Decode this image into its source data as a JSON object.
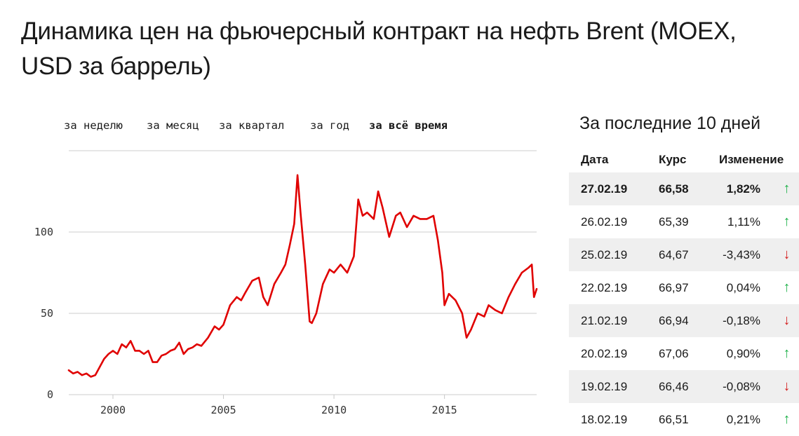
{
  "title": "Динамика цен на фьючерсный контракт на нефть Brent (MOEX, USD за баррель)",
  "periods": [
    {
      "label": "за неделю",
      "active": false
    },
    {
      "label": "за месяц",
      "active": false
    },
    {
      "label": "за квартал",
      "active": false
    },
    {
      "label": "за год",
      "active": false
    },
    {
      "label": "за всё время",
      "active": true
    }
  ],
  "chart_data": {
    "type": "line",
    "title": "",
    "xlabel": "",
    "ylabel": "",
    "xlim": [
      1998.0,
      2019.17
    ],
    "ylim": [
      0,
      150
    ],
    "xticks": [
      2000,
      2005,
      2010,
      2015
    ],
    "yticks": [
      0,
      50,
      100
    ],
    "grid": true,
    "line_color": "#e00000",
    "series": [
      {
        "x": [
          1998.0,
          1998.2,
          1998.4,
          1998.6,
          1998.8,
          1999.0,
          1999.2,
          1999.4,
          1999.6,
          1999.8,
          2000.0,
          2000.2,
          2000.4,
          2000.6,
          2000.8,
          2001.0,
          2001.2,
          2001.4,
          2001.6,
          2001.8,
          2002.0,
          2002.2,
          2002.4,
          2002.6,
          2002.8,
          2003.0,
          2003.2,
          2003.4,
          2003.6,
          2003.8,
          2004.0,
          2004.3,
          2004.6,
          2004.8,
          2005.0,
          2005.3,
          2005.6,
          2005.8,
          2006.0,
          2006.3,
          2006.6,
          2006.8,
          2007.0,
          2007.3,
          2007.6,
          2007.8,
          2008.0,
          2008.2,
          2008.35,
          2008.5,
          2008.7,
          2008.9,
          2009.0,
          2009.2,
          2009.5,
          2009.8,
          2010.0,
          2010.3,
          2010.6,
          2010.9,
          2011.1,
          2011.3,
          2011.5,
          2011.8,
          2012.0,
          2012.2,
          2012.5,
          2012.8,
          2013.0,
          2013.3,
          2013.6,
          2013.9,
          2014.2,
          2014.5,
          2014.7,
          2014.9,
          2015.0,
          2015.2,
          2015.5,
          2015.8,
          2016.0,
          2016.2,
          2016.5,
          2016.8,
          2017.0,
          2017.3,
          2017.6,
          2017.9,
          2018.2,
          2018.5,
          2018.8,
          2018.95,
          2019.05,
          2019.17
        ],
        "y": [
          15,
          13,
          14,
          12,
          13,
          11,
          12,
          17,
          22,
          25,
          27,
          25,
          31,
          29,
          33,
          27,
          27,
          25,
          27,
          20,
          20,
          24,
          25,
          27,
          28,
          32,
          25,
          28,
          29,
          31,
          30,
          35,
          42,
          40,
          43,
          55,
          60,
          58,
          63,
          70,
          72,
          60,
          55,
          68,
          75,
          80,
          92,
          105,
          135,
          110,
          80,
          45,
          44,
          50,
          68,
          77,
          75,
          80,
          75,
          85,
          120,
          110,
          112,
          108,
          125,
          115,
          97,
          110,
          112,
          103,
          110,
          108,
          108,
          110,
          95,
          75,
          55,
          62,
          58,
          50,
          35,
          40,
          50,
          48,
          55,
          52,
          50,
          60,
          68,
          75,
          78,
          80,
          60,
          65
        ]
      }
    ]
  },
  "side": {
    "title": "За последние 10 дней",
    "headers": {
      "date": "Дата",
      "rate": "Курс",
      "change": "Изменение"
    },
    "rows": [
      {
        "date": "27.02.19",
        "rate": "66,58",
        "change": "1,82%",
        "dir": "up",
        "arrow": "↑"
      },
      {
        "date": "26.02.19",
        "rate": "65,39",
        "change": "1,11%",
        "dir": "up",
        "arrow": "↑"
      },
      {
        "date": "25.02.19",
        "rate": "64,67",
        "change": "-3,43%",
        "dir": "down",
        "arrow": "↓"
      },
      {
        "date": "22.02.19",
        "rate": "66,97",
        "change": "0,04%",
        "dir": "up",
        "arrow": "↑"
      },
      {
        "date": "21.02.19",
        "rate": "66,94",
        "change": "-0,18%",
        "dir": "down",
        "arrow": "↓"
      },
      {
        "date": "20.02.19",
        "rate": "67,06",
        "change": "0,90%",
        "dir": "up",
        "arrow": "↑"
      },
      {
        "date": "19.02.19",
        "rate": "66,46",
        "change": "-0,08%",
        "dir": "down",
        "arrow": "↓"
      },
      {
        "date": "18.02.19",
        "rate": "66,51",
        "change": "0,21%",
        "dir": "up",
        "arrow": "↑"
      }
    ],
    "colors": {
      "up": "#1fb24a",
      "down": "#d41f1f",
      "shade": "#efefef"
    }
  }
}
